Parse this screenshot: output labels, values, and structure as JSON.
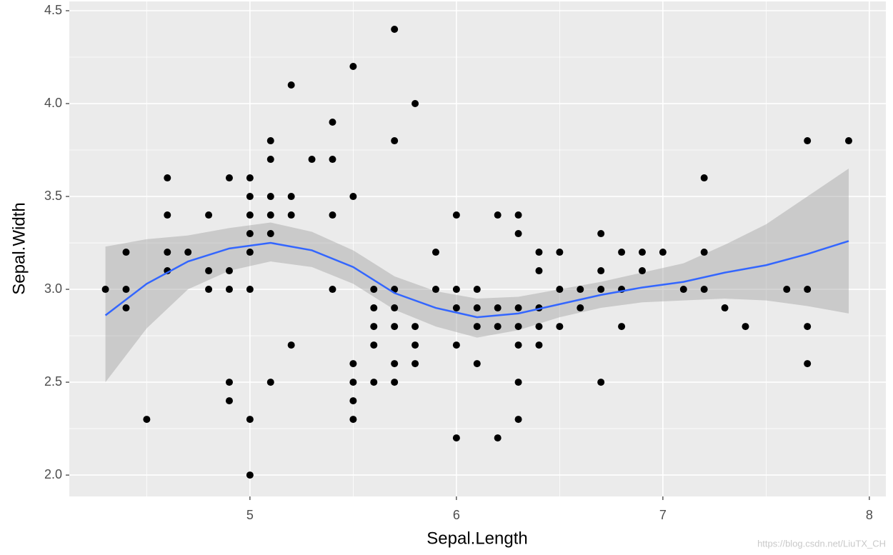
{
  "chart_data": {
    "type": "scatter",
    "x_label": "Sepal.Length",
    "y_label": "Sepal.Width",
    "watermark": "https://blog.csdn.net/LiuTX_CH",
    "xlim": [
      4.125,
      8.08
    ],
    "ylim": [
      1.885,
      4.55
    ],
    "xticks": [
      5,
      6,
      7,
      8
    ],
    "yticks": [
      {
        "value": 2,
        "label": "2.0"
      },
      {
        "value": 2.5,
        "label": "2.5"
      },
      {
        "value": 3,
        "label": "3.0"
      },
      {
        "value": 3.5,
        "label": "3.5"
      },
      {
        "value": 4,
        "label": "4.0"
      },
      {
        "value": 4.5,
        "label": "4.5"
      }
    ],
    "xminor": [
      4.5,
      5.5,
      6.5,
      7.5
    ],
    "yminor": [
      2.25,
      2.75,
      3.25,
      3.75,
      4.25
    ],
    "grid": true,
    "color": "#000000",
    "x": [
      4.3,
      4.4,
      4.4,
      4.4,
      4.5,
      4.6,
      4.6,
      4.6,
      4.6,
      4.7,
      4.8,
      4.8,
      4.8,
      4.9,
      4.9,
      4.9,
      4.9,
      4.9,
      5.0,
      5.0,
      5.0,
      5.0,
      5.0,
      5.0,
      5.0,
      5.0,
      5.1,
      5.1,
      5.1,
      5.1,
      5.1,
      5.1,
      5.2,
      5.2,
      5.2,
      5.2,
      5.3,
      5.4,
      5.4,
      5.4,
      5.4,
      5.5,
      5.5,
      5.5,
      5.5,
      5.5,
      5.5,
      5.6,
      5.6,
      5.6,
      5.6,
      5.6,
      5.7,
      5.7,
      5.7,
      5.7,
      5.7,
      5.7,
      5.7,
      5.8,
      5.8,
      5.8,
      5.8,
      5.9,
      5.9,
      6.0,
      6.0,
      6.0,
      6.0,
      6.0,
      6.1,
      6.1,
      6.1,
      6.1,
      6.2,
      6.2,
      6.2,
      6.2,
      6.3,
      6.3,
      6.3,
      6.3,
      6.3,
      6.3,
      6.3,
      6.4,
      6.4,
      6.4,
      6.4,
      6.4,
      6.5,
      6.5,
      6.5,
      6.6,
      6.6,
      6.7,
      6.7,
      6.7,
      6.7,
      6.8,
      6.8,
      6.8,
      6.9,
      6.9,
      7.0,
      7.1,
      7.2,
      7.2,
      7.2,
      7.3,
      7.4,
      7.6,
      7.7,
      7.7,
      7.7,
      7.7,
      7.9
    ],
    "values": [
      3.0,
      3.2,
      3.0,
      2.9,
      2.3,
      3.6,
      3.4,
      3.2,
      3.1,
      3.2,
      3.4,
      3.1,
      3.0,
      3.6,
      3.1,
      3.0,
      2.5,
      2.4,
      3.6,
      3.5,
      3.4,
      3.3,
      3.2,
      3.0,
      2.3,
      2.0,
      3.8,
      3.7,
      3.5,
      3.4,
      3.3,
      2.5,
      4.1,
      3.5,
      3.4,
      2.7,
      3.7,
      3.9,
      3.7,
      3.4,
      3.0,
      4.2,
      3.5,
      2.6,
      2.5,
      2.4,
      2.3,
      3.0,
      2.9,
      2.8,
      2.7,
      2.5,
      4.4,
      3.8,
      3.0,
      2.9,
      2.8,
      2.6,
      2.5,
      4.0,
      2.8,
      2.7,
      2.6,
      3.2,
      3.0,
      3.4,
      3.0,
      2.9,
      2.7,
      2.2,
      3.0,
      2.9,
      2.8,
      2.6,
      3.4,
      2.9,
      2.8,
      2.2,
      3.4,
      3.3,
      2.9,
      2.8,
      2.7,
      2.5,
      2.3,
      3.2,
      3.1,
      2.9,
      2.8,
      2.7,
      3.2,
      3.0,
      2.8,
      3.0,
      2.9,
      3.3,
      3.1,
      3.0,
      2.5,
      3.2,
      3.0,
      2.8,
      3.2,
      3.1,
      3.2,
      3.0,
      3.6,
      3.2,
      3.0,
      2.9,
      2.8,
      3.0,
      3.8,
      3.0,
      2.8,
      2.6,
      3.8
    ],
    "smooth": {
      "color": "#3366ff",
      "band_color": "#999999",
      "x": [
        4.3,
        4.5,
        4.7,
        4.9,
        5.1,
        5.3,
        5.5,
        5.7,
        5.9,
        6.1,
        6.3,
        6.5,
        6.7,
        6.9,
        7.1,
        7.3,
        7.5,
        7.7,
        7.9
      ],
      "values": [
        2.86,
        3.03,
        3.15,
        3.22,
        3.25,
        3.21,
        3.12,
        2.98,
        2.9,
        2.85,
        2.87,
        2.92,
        2.97,
        3.01,
        3.04,
        3.09,
        3.13,
        3.19,
        3.26
      ],
      "lower": [
        2.5,
        2.79,
        3.0,
        3.1,
        3.15,
        3.12,
        3.03,
        2.89,
        2.8,
        2.74,
        2.78,
        2.85,
        2.9,
        2.93,
        2.94,
        2.95,
        2.94,
        2.91,
        2.87
      ],
      "upper": [
        3.23,
        3.27,
        3.29,
        3.33,
        3.36,
        3.31,
        3.21,
        3.07,
        2.99,
        2.95,
        2.96,
        3.0,
        3.04,
        3.09,
        3.14,
        3.24,
        3.35,
        3.5,
        3.65
      ]
    }
  }
}
